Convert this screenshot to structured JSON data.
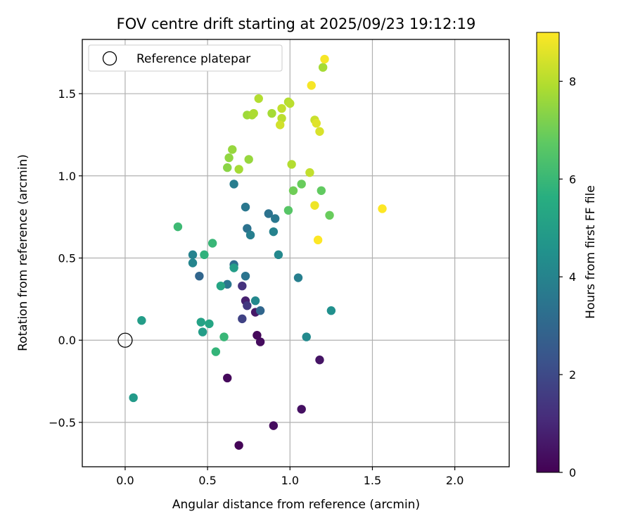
{
  "chart_data": {
    "type": "scatter",
    "title": "FOV centre drift starting at 2025/09/23 19:12:19",
    "xlabel": "Angular distance from reference (arcmin)",
    "ylabel": "Rotation from reference (arcmin)",
    "xlim": [
      -0.26,
      2.33
    ],
    "ylim": [
      -0.77,
      1.83
    ],
    "xticks": [
      0.0,
      0.5,
      1.0,
      1.5,
      2.0
    ],
    "xtick_labels": [
      "0.0",
      "0.5",
      "1.0",
      "1.5",
      "2.0"
    ],
    "yticks": [
      -0.5,
      0.0,
      0.5,
      1.0,
      1.5
    ],
    "ytick_labels": [
      "−0.5",
      "0.0",
      "0.5",
      "1.0",
      "1.5"
    ],
    "grid": true,
    "legend": {
      "position": "top-left",
      "entries": [
        "Reference platepar"
      ]
    },
    "reference_point": {
      "x": 0.0,
      "y": 0.0,
      "marker": "open-circle",
      "label": "Reference platepar"
    },
    "colorbar": {
      "label": "Hours from first FF file",
      "colormap": "viridis",
      "range": [
        0,
        9
      ],
      "ticks": [
        0,
        2,
        4,
        6,
        8
      ],
      "tick_labels": [
        "0",
        "2",
        "4",
        "6",
        "8"
      ]
    },
    "points": [
      {
        "x": 0.69,
        "y": -0.64,
        "h": 0.1
      },
      {
        "x": 0.9,
        "y": -0.52,
        "h": 0.3
      },
      {
        "x": 1.07,
        "y": -0.42,
        "h": 0.4
      },
      {
        "x": 0.62,
        "y": -0.23,
        "h": 0.2
      },
      {
        "x": 1.18,
        "y": -0.12,
        "h": 0.5
      },
      {
        "x": 0.82,
        "y": -0.01,
        "h": 0.3
      },
      {
        "x": 0.8,
        "y": 0.03,
        "h": 0.2
      },
      {
        "x": 0.79,
        "y": 0.17,
        "h": 0.6
      },
      {
        "x": 0.73,
        "y": 0.24,
        "h": 0.8
      },
      {
        "x": 0.74,
        "y": 0.21,
        "h": 1.5
      },
      {
        "x": 0.71,
        "y": 0.13,
        "h": 1.8
      },
      {
        "x": 0.71,
        "y": 0.33,
        "h": 1.3
      },
      {
        "x": 0.82,
        "y": 0.18,
        "h": 3.0
      },
      {
        "x": 0.45,
        "y": 0.39,
        "h": 3.0
      },
      {
        "x": 0.62,
        "y": 0.34,
        "h": 3.6
      },
      {
        "x": 0.66,
        "y": 0.46,
        "h": 3.2
      },
      {
        "x": 0.73,
        "y": 0.39,
        "h": 3.5
      },
      {
        "x": 0.79,
        "y": 0.24,
        "h": 4.2
      },
      {
        "x": 0.41,
        "y": 0.52,
        "h": 4.0
      },
      {
        "x": 0.41,
        "y": 0.47,
        "h": 4.1
      },
      {
        "x": 0.74,
        "y": 0.68,
        "h": 3.4
      },
      {
        "x": 0.76,
        "y": 0.64,
        "h": 3.9
      },
      {
        "x": 0.73,
        "y": 0.81,
        "h": 3.6
      },
      {
        "x": 0.66,
        "y": 0.95,
        "h": 3.8
      },
      {
        "x": 0.87,
        "y": 0.77,
        "h": 3.4
      },
      {
        "x": 0.91,
        "y": 0.74,
        "h": 3.6
      },
      {
        "x": 0.9,
        "y": 0.66,
        "h": 4.0
      },
      {
        "x": 0.93,
        "y": 0.52,
        "h": 4.2
      },
      {
        "x": 1.05,
        "y": 0.38,
        "h": 3.9
      },
      {
        "x": 1.25,
        "y": 0.18,
        "h": 4.5
      },
      {
        "x": 1.1,
        "y": 0.02,
        "h": 4.3
      },
      {
        "x": 0.1,
        "y": 0.12,
        "h": 5.0
      },
      {
        "x": 0.05,
        "y": -0.35,
        "h": 4.9
      },
      {
        "x": 0.46,
        "y": 0.11,
        "h": 5.2
      },
      {
        "x": 0.47,
        "y": 0.05,
        "h": 5.0
      },
      {
        "x": 0.51,
        "y": 0.1,
        "h": 5.3
      },
      {
        "x": 0.58,
        "y": 0.33,
        "h": 5.3
      },
      {
        "x": 0.66,
        "y": 0.44,
        "h": 5.0
      },
      {
        "x": 0.48,
        "y": 0.52,
        "h": 5.8
      },
      {
        "x": 0.53,
        "y": 0.59,
        "h": 6.0
      },
      {
        "x": 0.55,
        "y": -0.07,
        "h": 5.9
      },
      {
        "x": 0.6,
        "y": 0.02,
        "h": 6.0
      },
      {
        "x": 0.32,
        "y": 0.69,
        "h": 6.1
      },
      {
        "x": 0.99,
        "y": 0.79,
        "h": 6.6
      },
      {
        "x": 1.24,
        "y": 0.76,
        "h": 6.9
      },
      {
        "x": 1.19,
        "y": 0.91,
        "h": 6.8
      },
      {
        "x": 1.07,
        "y": 0.95,
        "h": 6.9
      },
      {
        "x": 1.02,
        "y": 0.91,
        "h": 7.0
      },
      {
        "x": 0.62,
        "y": 1.05,
        "h": 7.4
      },
      {
        "x": 0.63,
        "y": 1.11,
        "h": 7.5
      },
      {
        "x": 0.65,
        "y": 1.16,
        "h": 7.6
      },
      {
        "x": 0.69,
        "y": 1.04,
        "h": 7.8
      },
      {
        "x": 0.75,
        "y": 1.1,
        "h": 7.6
      },
      {
        "x": 1.01,
        "y": 1.07,
        "h": 8.0
      },
      {
        "x": 1.12,
        "y": 1.02,
        "h": 8.2
      },
      {
        "x": 0.74,
        "y": 1.37,
        "h": 7.7
      },
      {
        "x": 0.77,
        "y": 1.37,
        "h": 7.8
      },
      {
        "x": 0.78,
        "y": 1.38,
        "h": 7.9
      },
      {
        "x": 0.89,
        "y": 1.38,
        "h": 7.8
      },
      {
        "x": 0.81,
        "y": 1.47,
        "h": 8.0
      },
      {
        "x": 0.95,
        "y": 1.35,
        "h": 8.1
      },
      {
        "x": 0.95,
        "y": 1.41,
        "h": 8.2
      },
      {
        "x": 0.99,
        "y": 1.45,
        "h": 8.0
      },
      {
        "x": 1.0,
        "y": 1.44,
        "h": 8.1
      },
      {
        "x": 0.94,
        "y": 1.31,
        "h": 8.4
      },
      {
        "x": 1.15,
        "y": 1.34,
        "h": 8.3
      },
      {
        "x": 1.18,
        "y": 1.27,
        "h": 8.5
      },
      {
        "x": 1.16,
        "y": 1.32,
        "h": 8.6
      },
      {
        "x": 1.13,
        "y": 1.55,
        "h": 8.9
      },
      {
        "x": 1.2,
        "y": 1.66,
        "h": 7.8
      },
      {
        "x": 1.21,
        "y": 1.71,
        "h": 8.9
      },
      {
        "x": 1.15,
        "y": 0.82,
        "h": 8.8
      },
      {
        "x": 1.17,
        "y": 0.61,
        "h": 9.0
      },
      {
        "x": 1.56,
        "y": 0.8,
        "h": 9.0
      }
    ]
  }
}
